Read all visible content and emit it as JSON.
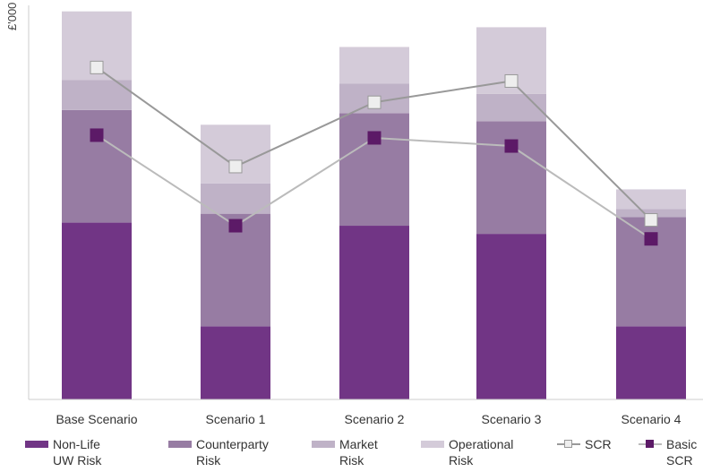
{
  "chart_data": {
    "type": "bar",
    "stacked": true,
    "ylabel": "£'000",
    "ylim": [
      0,
      100
    ],
    "grid": false,
    "legend_position": "bottom",
    "categories": [
      "Base Scenario",
      "Scenario 1",
      "Scenario 2",
      "Scenario 3",
      "Scenario 4"
    ],
    "series": [
      {
        "name": "Non-Life UW Risk",
        "legend_lines": [
          "Non-Life",
          "UW Risk"
        ],
        "color": "#713585",
        "values": [
          45.7,
          18.9,
          44.9,
          42.8,
          18.9
        ]
      },
      {
        "name": "Counterparty Risk",
        "legend_lines": [
          "Counterparty",
          "Risk"
        ],
        "color": "#977ca3",
        "values": [
          29.1,
          29.1,
          29.1,
          29.1,
          28.2
        ]
      },
      {
        "name": "Market Risk",
        "legend_lines": [
          "Market",
          "Risk"
        ],
        "color": "#bfb2c7",
        "values": [
          7.8,
          7.8,
          7.6,
          7.1,
          2.1
        ]
      },
      {
        "name": "Operational Risk",
        "legend_lines": [
          "Operational",
          "Risk"
        ],
        "color": "#d4cbd9",
        "values": [
          17.7,
          15.2,
          9.5,
          17.2,
          5.1
        ]
      }
    ],
    "lines": [
      {
        "name": "SCR",
        "legend_lines": [
          "SCR"
        ],
        "color": "#999999",
        "marker_fill": "#eeeeee",
        "values": [
          85.8,
          60.2,
          76.8,
          82.3,
          46.4
        ]
      },
      {
        "name": "Basic SCR",
        "legend_lines": [
          "Basic",
          "SCR"
        ],
        "color": "#bbbbbb",
        "marker_fill": "#5c1a67",
        "values": [
          68.3,
          44.9,
          67.6,
          65.5,
          41.5
        ]
      }
    ]
  }
}
